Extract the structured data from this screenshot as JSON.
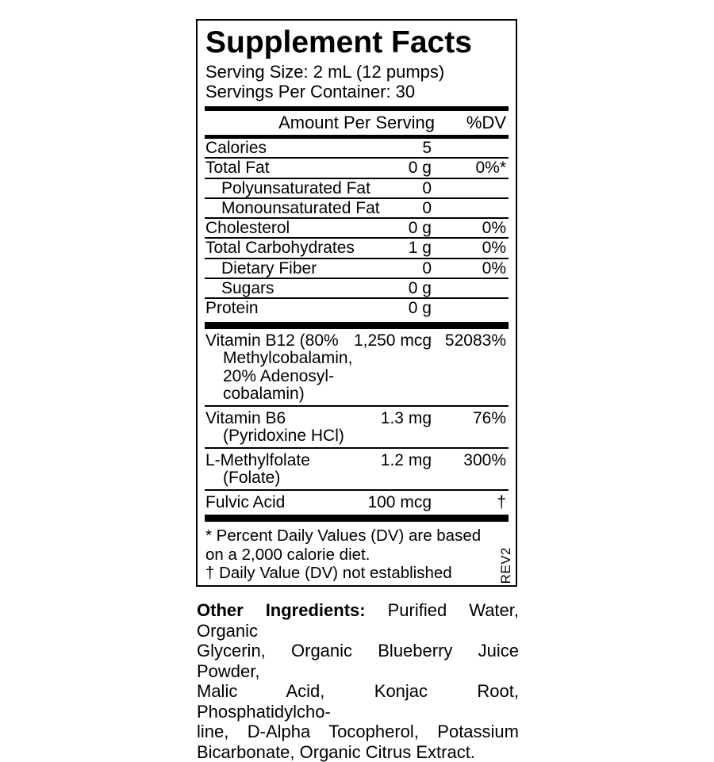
{
  "colors": {
    "ink": "#000000",
    "background": "#ffffff"
  },
  "panel": {
    "title": "Supplement Facts",
    "serving_size": "Serving Size: 2 mL (12 pumps)",
    "servings_per_container": "Servings Per Container: 30",
    "columns": {
      "amount": "Amount Per Serving",
      "dv": "%DV"
    },
    "nutrients": [
      {
        "name": "Calories",
        "amount": "5",
        "dv": "",
        "indent": false
      },
      {
        "name": "Total Fat",
        "amount": "0 g",
        "dv": "0%*",
        "indent": false
      },
      {
        "name": "Polyunsaturated Fat",
        "amount": "0",
        "dv": "",
        "indent": true
      },
      {
        "name": "Monounsaturated Fat",
        "amount": "0",
        "dv": "",
        "indent": true
      },
      {
        "name": "Cholesterol",
        "amount": "0 g",
        "dv": "0%",
        "indent": false
      },
      {
        "name": "Total Carbohydrates",
        "amount": "1 g",
        "dv": "0%",
        "indent": false
      },
      {
        "name": "Dietary Fiber",
        "amount": "0",
        "dv": "0%",
        "indent": true
      },
      {
        "name": "Sugars",
        "amount": "0 g",
        "dv": "",
        "indent": true
      },
      {
        "name": "Protein",
        "amount": "0 g",
        "dv": "",
        "indent": false
      }
    ],
    "supplements": [
      {
        "name_lines": [
          "Vitamin B12 (80%",
          "Methylcobalamin,",
          "20% Adenosyl-",
          "cobalamin)"
        ],
        "amount": "1,250 mcg",
        "dv": "52083%"
      },
      {
        "name_lines": [
          "Vitamin B6",
          "(Pyridoxine HCl)"
        ],
        "amount": "1.3 mg",
        "dv": "76%"
      },
      {
        "name_lines": [
          "L-Methylfolate",
          "(Folate)"
        ],
        "amount": "1.2 mg",
        "dv": "300%"
      },
      {
        "name_lines": [
          "Fulvic Acid"
        ],
        "amount": "100 mcg",
        "dv": "†"
      }
    ],
    "footnote_lines": [
      "* Percent Daily Values (DV) are based",
      "on a 2,000 calorie diet.",
      "† Daily Value (DV) not established"
    ],
    "rev": "REV2"
  },
  "other_ingredients": {
    "label": "Other Ingredients:",
    "lines": [
      "Purified Water, Organic",
      "Glycerin, Organic Blueberry Juice Powder,",
      "Malic Acid, Konjac Root, Phosphatidylcho-",
      "line, D-Alpha Tocopherol, Potassium",
      "Bicarbonate, Organic Citrus Extract."
    ]
  }
}
